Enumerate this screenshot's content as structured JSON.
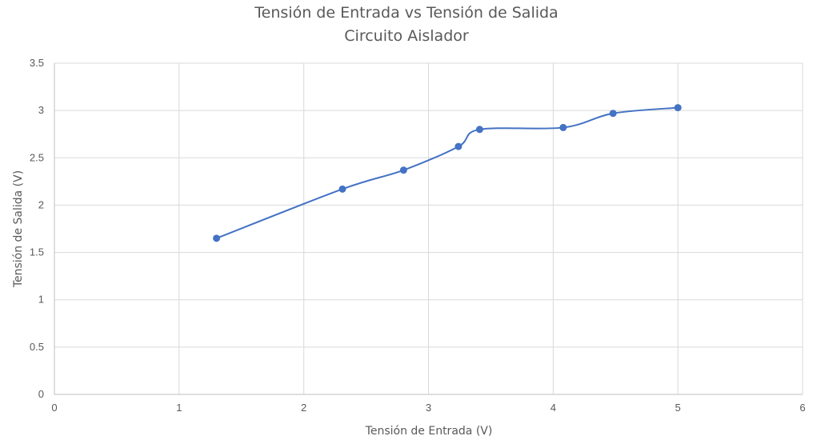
{
  "chart_data": {
    "type": "scatter",
    "title": "Tensión de Entrada vs Tensión de Salida",
    "subtitle": "Circuito Aislador",
    "xlabel": "Tensión de Entrada (V)",
    "ylabel": "Tensión de Salida (V)",
    "xlim": [
      0,
      6
    ],
    "ylim": [
      0,
      3.5
    ],
    "x_ticks": [
      "0",
      "1",
      "2",
      "3",
      "4",
      "5",
      "6"
    ],
    "y_ticks": [
      "0",
      "0.5",
      "1",
      "1.5",
      "2",
      "2.5",
      "3",
      "3.5"
    ],
    "grid": true,
    "smooth_line": true,
    "series_color": "#4472c4",
    "series": [
      {
        "x": [
          1.3,
          2.31,
          2.8,
          3.24,
          3.41,
          4.08,
          4.48,
          5.0
        ],
        "y": [
          1.65,
          2.17,
          2.37,
          2.62,
          2.8,
          2.82,
          2.97,
          3.03
        ]
      }
    ]
  }
}
